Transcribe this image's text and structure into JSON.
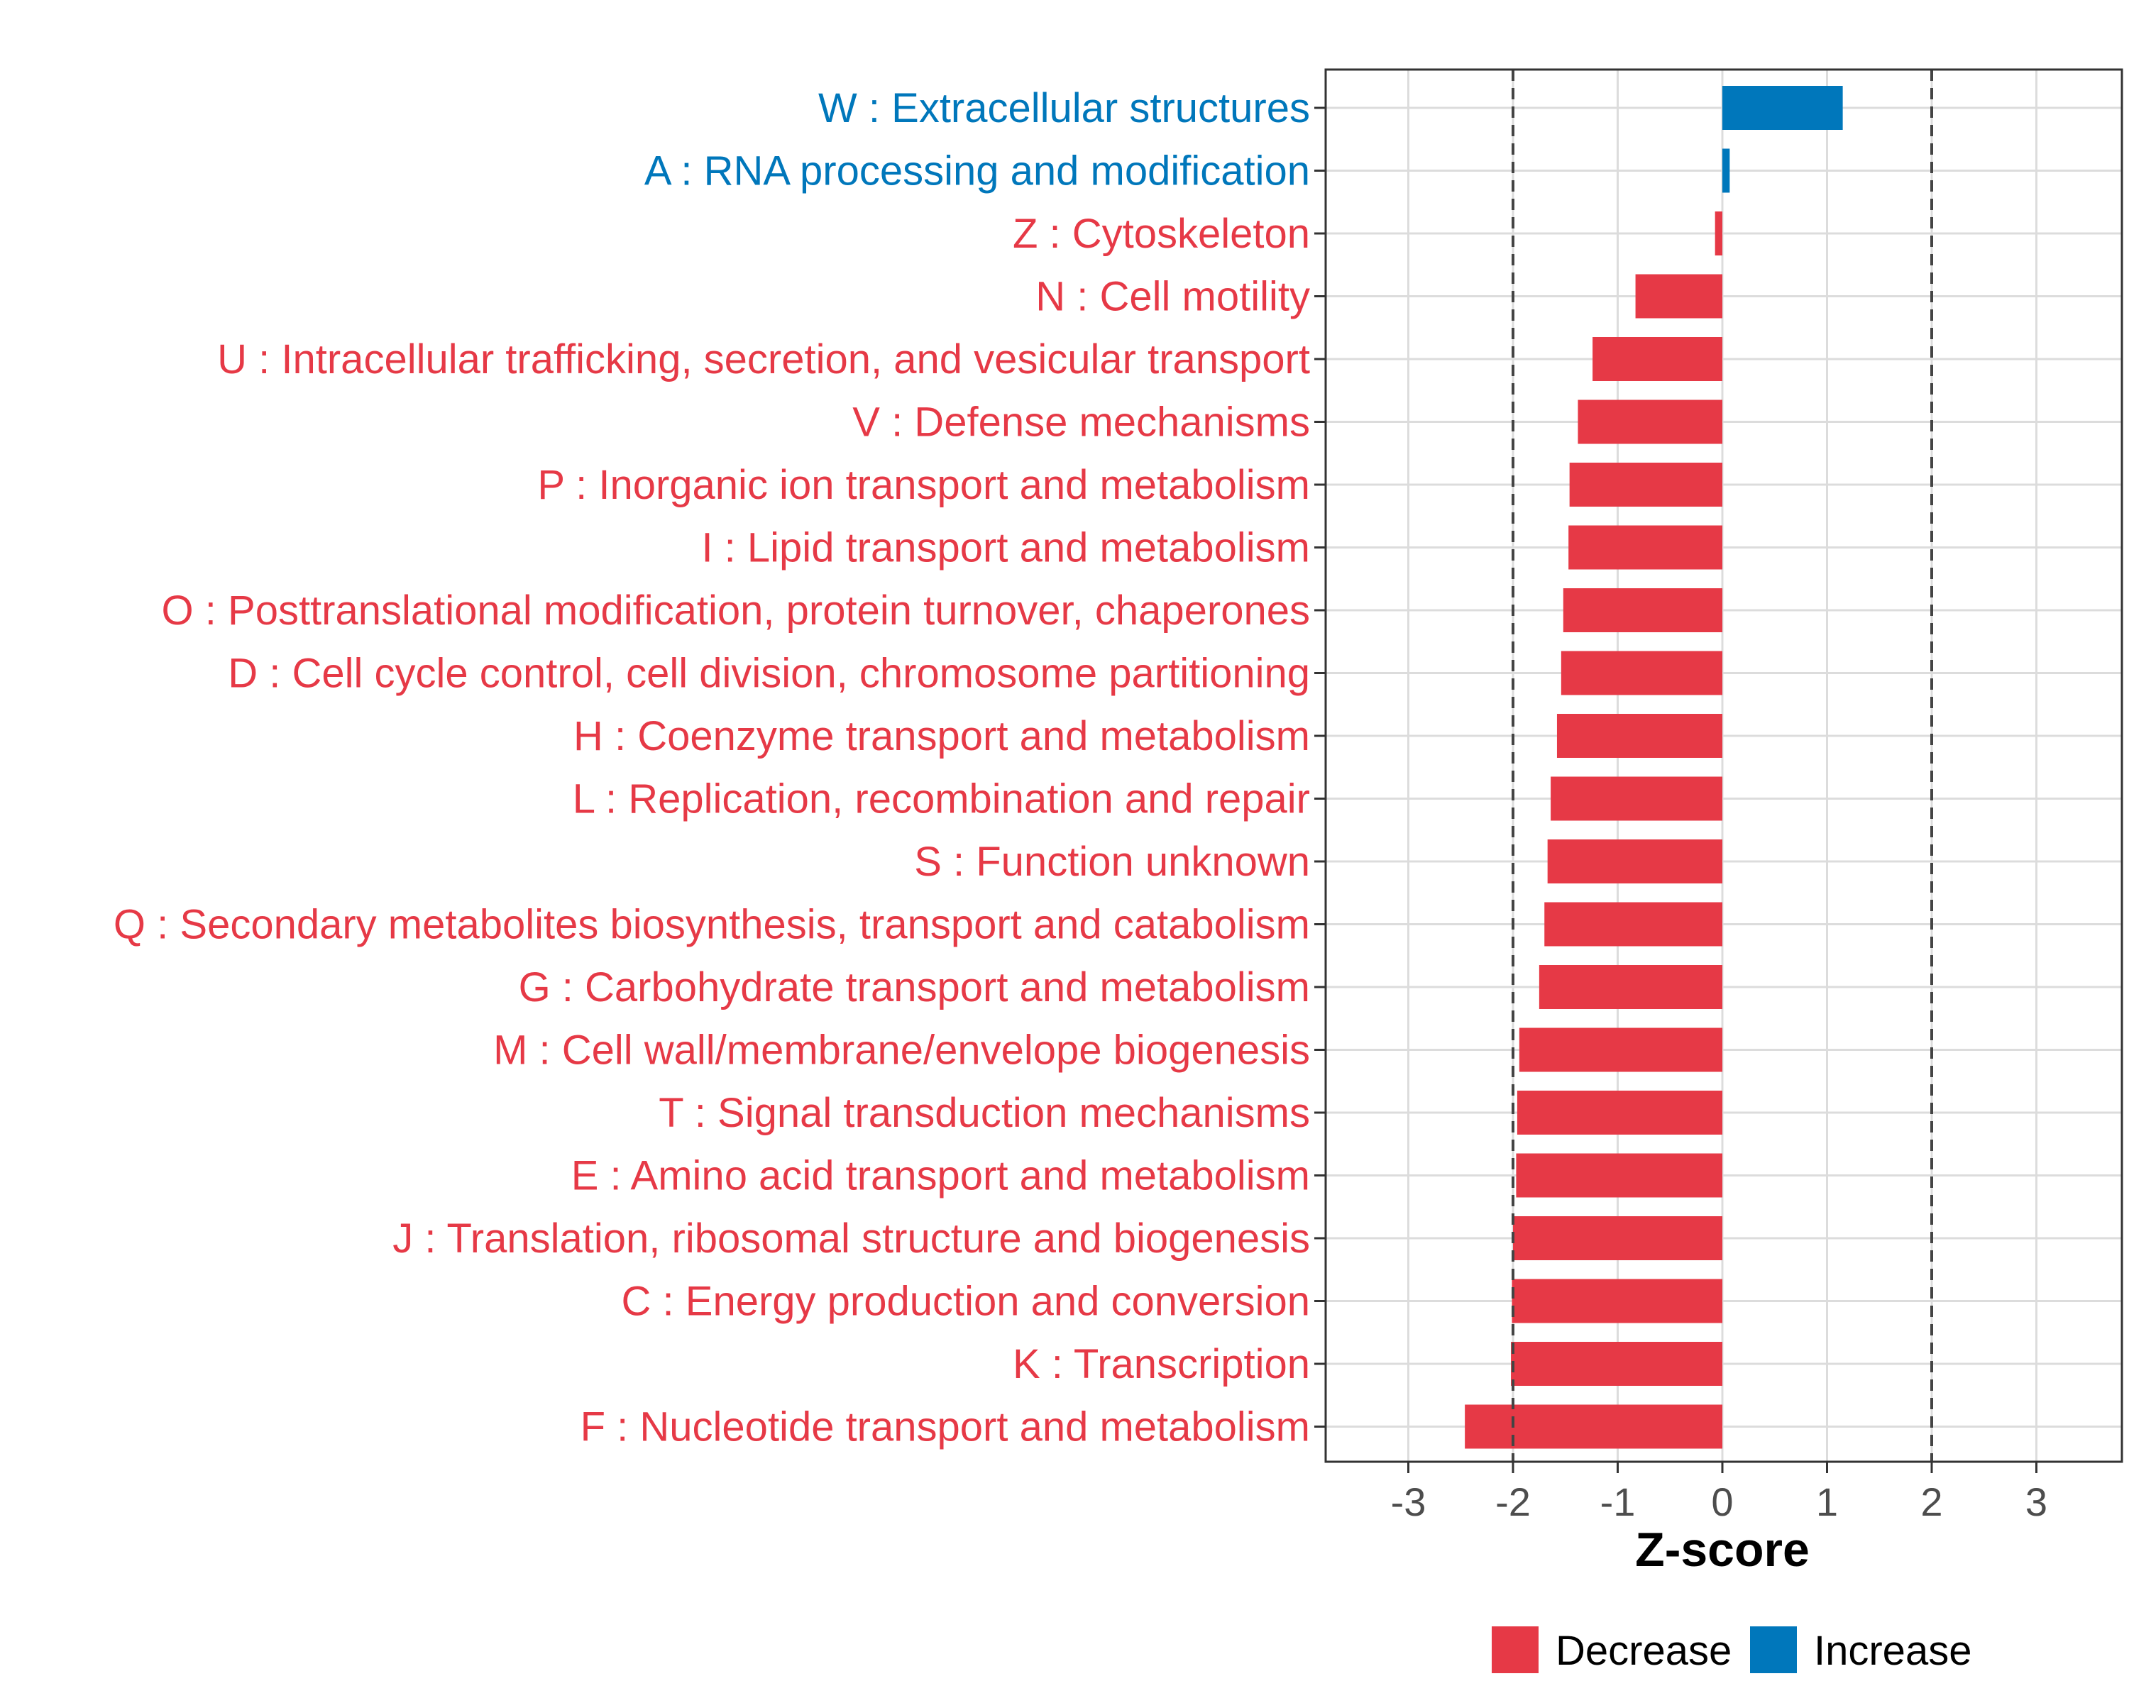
{
  "chart_data": {
    "type": "bar",
    "orientation": "horizontal",
    "title": "",
    "xlabel": "Z-score",
    "ylabel": "",
    "xlim": [
      -3.8,
      3.8
    ],
    "x_ticks": [
      -3,
      -2,
      -1,
      0,
      1,
      2,
      3
    ],
    "x_tick_labels": [
      "-3",
      "-2",
      "-1",
      "0",
      "1",
      "2",
      "3"
    ],
    "reference_lines": [
      -2,
      2
    ],
    "grid": true,
    "colors": {
      "Decrease": "#e63946",
      "Increase": "#0077bb"
    },
    "categories": [
      "W : Extracellular structures",
      "A : RNA processing and modification",
      "Z : Cytoskeleton",
      "N : Cell motility",
      "U : Intracellular trafficking, secretion, and vesicular transport",
      "V : Defense mechanisms",
      "P : Inorganic ion transport and metabolism",
      "I : Lipid transport and metabolism",
      "O : Posttranslational modification, protein turnover, chaperones",
      "D : Cell cycle control, cell division, chromosome partitioning",
      "H : Coenzyme transport and metabolism",
      "L : Replication, recombination and repair",
      "S : Function unknown",
      "Q : Secondary metabolites biosynthesis, transport and catabolism",
      "G : Carbohydrate transport and metabolism",
      "M : Cell wall/membrane/envelope biogenesis",
      "T : Signal transduction mechanisms",
      "E : Amino acid transport and metabolism",
      "J : Translation, ribosomal structure and biogenesis",
      "C : Energy production and conversion",
      "K : Transcription",
      "F : Nucleotide transport and metabolism"
    ],
    "values": [
      1.15,
      0.07,
      -0.07,
      -0.83,
      -1.24,
      -1.38,
      -1.46,
      -1.47,
      -1.52,
      -1.54,
      -1.58,
      -1.64,
      -1.67,
      -1.7,
      -1.75,
      -1.94,
      -1.96,
      -1.97,
      -2.0,
      -2.01,
      -2.02,
      -2.46
    ],
    "directions": [
      "Increase",
      "Increase",
      "Decrease",
      "Decrease",
      "Decrease",
      "Decrease",
      "Decrease",
      "Decrease",
      "Decrease",
      "Decrease",
      "Decrease",
      "Decrease",
      "Decrease",
      "Decrease",
      "Decrease",
      "Decrease",
      "Decrease",
      "Decrease",
      "Decrease",
      "Decrease",
      "Decrease",
      "Decrease"
    ],
    "legend": {
      "position": "bottom",
      "entries": [
        {
          "label": "Decrease",
          "color": "#e63946"
        },
        {
          "label": "Increase",
          "color": "#0077bb"
        }
      ]
    }
  }
}
